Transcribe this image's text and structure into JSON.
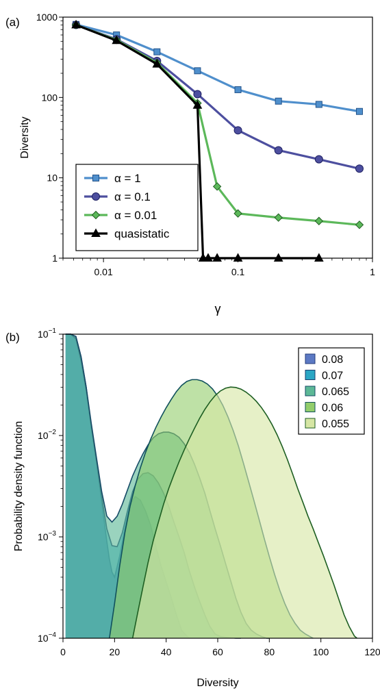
{
  "colors": {
    "alpha_1": "#4f8fcc",
    "alpha_01": "#4d4f9f",
    "alpha_001": "#5cb85a",
    "quasistatic": "#000000",
    "pdf_0_08": "#5c79c4",
    "pdf_0_07": "#2aa6c4",
    "pdf_0_065": "#5cb896",
    "pdf_0_06": "#92cd6b",
    "pdf_0_055": "#d6e6a4"
  },
  "chart_data": [
    {
      "panel_label": "(a)",
      "type": "line",
      "xlabel": "γ",
      "ylabel": "Diversity",
      "xscale": "log",
      "yscale": "log",
      "xlim": [
        0.005,
        1
      ],
      "ylim": [
        1,
        1000
      ],
      "xticks": [
        0.01,
        0.1,
        1
      ],
      "xtick_labels": [
        "0.01",
        "0.1",
        "1"
      ],
      "yticks": [
        1,
        10,
        100,
        1000
      ],
      "ytick_labels": [
        "1",
        "10",
        "100",
        "1000"
      ],
      "grid": false,
      "legend_position": "bottom-left",
      "series": [
        {
          "name": "α = 1",
          "marker": "square",
          "x": [
            0.00625,
            0.0125,
            0.025,
            0.05,
            0.1,
            0.2,
            0.4,
            0.8
          ],
          "y": [
            810,
            600,
            370,
            215,
            125,
            90,
            82,
            67
          ]
        },
        {
          "name": "α = 0.1",
          "marker": "circle",
          "x": [
            0.00625,
            0.0125,
            0.025,
            0.05,
            0.1,
            0.2,
            0.4,
            0.8
          ],
          "y": [
            800,
            530,
            285,
            110,
            39,
            22,
            17,
            13
          ]
        },
        {
          "name": "α = 0.01",
          "marker": "diamond",
          "x": [
            0.00625,
            0.0125,
            0.025,
            0.05,
            0.07,
            0.1,
            0.2,
            0.4,
            0.8
          ],
          "y": [
            800,
            520,
            270,
            85,
            7.8,
            3.6,
            3.2,
            2.9,
            2.6
          ]
        },
        {
          "name": "quasistatic",
          "marker": "triangle",
          "x": [
            0.00625,
            0.0125,
            0.025,
            0.05,
            0.055,
            0.06,
            0.07,
            0.1,
            0.2,
            0.4
          ],
          "y": [
            800,
            510,
            260,
            80,
            1,
            1,
            1,
            1,
            1,
            1
          ]
        }
      ]
    },
    {
      "panel_label": "(b)",
      "type": "area",
      "xlabel": "Diversity",
      "ylabel": "Probability density function",
      "yscale": "log",
      "xlim": [
        0,
        120
      ],
      "ylim": [
        0.0001,
        0.1
      ],
      "xticks": [
        0,
        20,
        40,
        60,
        80,
        100,
        120
      ],
      "xtick_labels": [
        "0",
        "20",
        "40",
        "60",
        "80",
        "100",
        "120"
      ],
      "yticks": [
        0.0001,
        0.001,
        0.01,
        0.1
      ],
      "ytick_base": "10",
      "ytick_exponents": [
        "−4",
        "−3",
        "−2",
        "−1"
      ],
      "grid": false,
      "legend_position": "top-right",
      "series": [
        {
          "name": "0.08",
          "x": [
            1,
            3,
            5,
            7,
            9,
            11,
            13,
            15,
            17,
            18,
            19,
            20,
            22,
            24,
            26,
            28,
            30,
            32,
            34,
            36,
            38,
            40,
            42,
            44,
            46,
            48,
            49
          ],
          "y": [
            0.1,
            0.1,
            0.095,
            0.06,
            0.03,
            0.012,
            0.0055,
            0.0022,
            0.0009,
            0.0006,
            0.00045,
            0.0004,
            0.00065,
            0.0012,
            0.0021,
            0.0025,
            0.0023,
            0.0018,
            0.0013,
            0.0008,
            0.00052,
            0.00036,
            0.00025,
            0.00017,
            0.00012,
            0.000105,
            0.0001
          ]
        },
        {
          "name": "0.07",
          "x": [
            1,
            3,
            5,
            7,
            9,
            11,
            13,
            15,
            17,
            19,
            21,
            23,
            25,
            27,
            29,
            31,
            33,
            35,
            37,
            39,
            41,
            43,
            45,
            47,
            49,
            51,
            53,
            55,
            57,
            59,
            61,
            63,
            65,
            67,
            69
          ],
          "y": [
            0.1,
            0.1,
            0.09,
            0.055,
            0.028,
            0.012,
            0.0055,
            0.0025,
            0.0012,
            0.00082,
            0.0008,
            0.0011,
            0.0018,
            0.0028,
            0.0037,
            0.0042,
            0.0043,
            0.004,
            0.0034,
            0.0027,
            0.002,
            0.0014,
            0.001,
            0.0007,
            0.00046,
            0.00032,
            0.00023,
            0.00017,
            0.00013,
            0.00011,
            0.000104,
            0.000102,
            0.000101,
            0.0001,
            0.0001
          ]
        },
        {
          "name": "0.065",
          "x": [
            1,
            3,
            5,
            7,
            9,
            11,
            13,
            15,
            17,
            19,
            21,
            23,
            25,
            27,
            29,
            31,
            33,
            35,
            37,
            39,
            41,
            43,
            45,
            47,
            49,
            51,
            53,
            55,
            57,
            59,
            61,
            63,
            65,
            67,
            69,
            71,
            73,
            75,
            77,
            79,
            80
          ],
          "y": [
            0.1,
            0.1,
            0.095,
            0.06,
            0.03,
            0.013,
            0.006,
            0.0028,
            0.0016,
            0.0014,
            0.0016,
            0.0021,
            0.0029,
            0.004,
            0.0052,
            0.0066,
            0.0081,
            0.0095,
            0.0104,
            0.0108,
            0.0108,
            0.0104,
            0.0096,
            0.0083,
            0.0068,
            0.0052,
            0.0038,
            0.0027,
            0.0018,
            0.0012,
            0.00082,
            0.00055,
            0.00037,
            0.00025,
            0.00018,
            0.00014,
            0.00012,
            0.00011,
            0.000104,
            0.0001,
            0.0001
          ]
        },
        {
          "name": "0.06",
          "x": [
            18,
            20,
            22,
            24,
            26,
            28,
            30,
            32,
            34,
            36,
            38,
            40,
            42,
            44,
            46,
            48,
            50,
            52,
            54,
            56,
            58,
            60,
            62,
            64,
            66,
            68,
            70,
            72,
            74,
            76,
            78,
            80,
            82,
            84,
            86,
            88,
            90,
            92,
            94,
            96,
            97
          ],
          "y": [
            0.0001,
            0.00022,
            0.00052,
            0.0011,
            0.002,
            0.0032,
            0.0048,
            0.0068,
            0.0092,
            0.012,
            0.0152,
            0.0188,
            0.0228,
            0.0272,
            0.0312,
            0.0342,
            0.0356,
            0.0356,
            0.0345,
            0.0322,
            0.0288,
            0.0245,
            0.0198,
            0.0152,
            0.0112,
            0.0079,
            0.0053,
            0.0035,
            0.0023,
            0.0015,
            0.00097,
            0.00064,
            0.00043,
            0.0003,
            0.00022,
            0.00017,
            0.00014,
            0.00012,
            0.00011,
            0.000103,
            0.0001
          ]
        },
        {
          "name": "0.055",
          "x": [
            27,
            29,
            31,
            33,
            35,
            37,
            39,
            41,
            43,
            45,
            47,
            49,
            51,
            53,
            55,
            57,
            59,
            61,
            63,
            65,
            67,
            69,
            71,
            73,
            75,
            77,
            79,
            81,
            83,
            85,
            87,
            89,
            91,
            93,
            95,
            97,
            99,
            101,
            103,
            105,
            107,
            109,
            111,
            113,
            114
          ],
          "y": [
            0.0001,
            0.00018,
            0.00032,
            0.00056,
            0.00092,
            0.0014,
            0.0021,
            0.003,
            0.0041,
            0.0055,
            0.0072,
            0.0093,
            0.0118,
            0.0148,
            0.0181,
            0.0215,
            0.0248,
            0.0275,
            0.0293,
            0.0301,
            0.0298,
            0.0287,
            0.0268,
            0.0244,
            0.0217,
            0.0188,
            0.0158,
            0.0129,
            0.0102,
            0.0078,
            0.0058,
            0.0042,
            0.003,
            0.0022,
            0.0016,
            0.0012,
            0.00088,
            0.00065,
            0.00047,
            0.00034,
            0.00024,
            0.00017,
            0.00013,
            0.000105,
            0.0001
          ]
        }
      ]
    }
  ]
}
